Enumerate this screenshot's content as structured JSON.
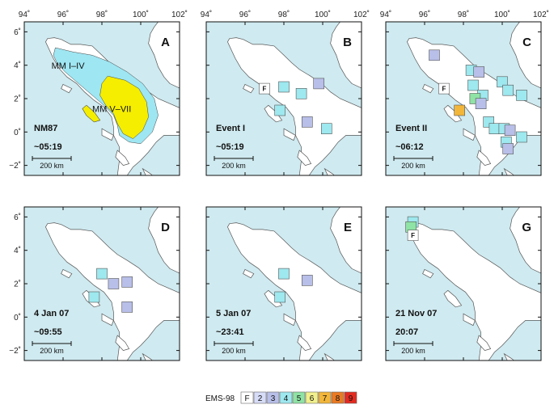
{
  "x_ticks": [
    "94˚",
    "96˚",
    "98˚",
    "100˚",
    "102˚"
  ],
  "y_ticks": [
    "6˚",
    "4˚",
    "2˚",
    "0˚",
    "−2˚"
  ],
  "scale_bar_label": "200 km",
  "colors": {
    "sea": "#cfeaf0",
    "land": "#ffffff",
    "coast": "#555555"
  },
  "panels": [
    {
      "letter": "A",
      "title": "NM87",
      "time": "~05:19",
      "zones": [
        {
          "label": "MM I–IV",
          "color": "#9ee6f2"
        },
        {
          "label": "MM V–VII",
          "color": "#f5ee00"
        }
      ],
      "markers": []
    },
    {
      "letter": "B",
      "title": "Event I",
      "time": "~05:19",
      "markers": [
        {
          "lon": 97.0,
          "lat": 2.6,
          "ems": "F"
        },
        {
          "lon": 98.0,
          "lat": 2.7,
          "ems": "4"
        },
        {
          "lon": 99.8,
          "lat": 2.9,
          "ems": "3"
        },
        {
          "lon": 98.9,
          "lat": 2.3,
          "ems": "4"
        },
        {
          "lon": 97.8,
          "lat": 1.3,
          "ems": "4"
        },
        {
          "lon": 99.2,
          "lat": 0.6,
          "ems": "3"
        },
        {
          "lon": 100.2,
          "lat": 0.2,
          "ems": "4"
        }
      ]
    },
    {
      "letter": "C",
      "title": "Event II",
      "time": "~06:12",
      "markers": [
        {
          "lon": 97.0,
          "lat": 2.6,
          "ems": "F"
        },
        {
          "lon": 96.5,
          "lat": 4.6,
          "ems": "3"
        },
        {
          "lon": 98.4,
          "lat": 3.7,
          "ems": "4"
        },
        {
          "lon": 98.8,
          "lat": 3.6,
          "ems": "3"
        },
        {
          "lon": 98.5,
          "lat": 2.8,
          "ems": "4"
        },
        {
          "lon": 99.0,
          "lat": 2.2,
          "ems": "4"
        },
        {
          "lon": 98.6,
          "lat": 2.0,
          "ems": "5"
        },
        {
          "lon": 98.9,
          "lat": 1.7,
          "ems": "3"
        },
        {
          "lon": 97.8,
          "lat": 1.3,
          "ems": "7"
        },
        {
          "lon": 100.0,
          "lat": 3.0,
          "ems": "4"
        },
        {
          "lon": 100.3,
          "lat": 2.5,
          "ems": "4"
        },
        {
          "lon": 101.0,
          "lat": 2.2,
          "ems": "4"
        },
        {
          "lon": 99.3,
          "lat": 0.6,
          "ems": "4"
        },
        {
          "lon": 99.6,
          "lat": 0.2,
          "ems": "4"
        },
        {
          "lon": 100.1,
          "lat": 0.2,
          "ems": "4"
        },
        {
          "lon": 100.4,
          "lat": 0.1,
          "ems": "3"
        },
        {
          "lon": 101.0,
          "lat": -0.3,
          "ems": "4"
        },
        {
          "lon": 100.2,
          "lat": -0.6,
          "ems": "4"
        },
        {
          "lon": 100.3,
          "lat": -1.0,
          "ems": "3"
        }
      ]
    },
    {
      "letter": "D",
      "title": "4 Jan 07",
      "time": "~09:55",
      "markers": [
        {
          "lon": 98.0,
          "lat": 2.6,
          "ems": "4"
        },
        {
          "lon": 98.6,
          "lat": 2.0,
          "ems": "3"
        },
        {
          "lon": 99.3,
          "lat": 2.1,
          "ems": "3"
        },
        {
          "lon": 97.6,
          "lat": 1.2,
          "ems": "4"
        },
        {
          "lon": 99.3,
          "lat": 0.6,
          "ems": "3"
        }
      ]
    },
    {
      "letter": "E",
      "title": "5 Jan 07",
      "time": "~23:41",
      "markers": [
        {
          "lon": 98.0,
          "lat": 2.6,
          "ems": "4"
        },
        {
          "lon": 99.2,
          "lat": 2.2,
          "ems": "3"
        },
        {
          "lon": 97.8,
          "lat": 1.2,
          "ems": "4"
        }
      ]
    },
    {
      "letter": "G",
      "title": "21 Nov 07",
      "time": "20:07",
      "markers": [
        {
          "lon": 95.4,
          "lat": 5.7,
          "ems": "4"
        },
        {
          "lon": 95.3,
          "lat": 5.4,
          "ems": "5"
        },
        {
          "lon": 95.4,
          "lat": 4.9,
          "ems": "F"
        }
      ]
    }
  ],
  "legend": {
    "title": "EMS-98",
    "items": [
      {
        "label": "F",
        "color": "#ffffff"
      },
      {
        "label": "2",
        "color": "#d7dcf7"
      },
      {
        "label": "3",
        "color": "#b8bfe8"
      },
      {
        "label": "4",
        "color": "#9ee8ef"
      },
      {
        "label": "5",
        "color": "#8fe3a5"
      },
      {
        "label": "6",
        "color": "#f1f08d"
      },
      {
        "label": "7",
        "color": "#f2b63a"
      },
      {
        "label": "8",
        "color": "#ea7a22"
      },
      {
        "label": "9",
        "color": "#e32a1f"
      }
    ]
  }
}
